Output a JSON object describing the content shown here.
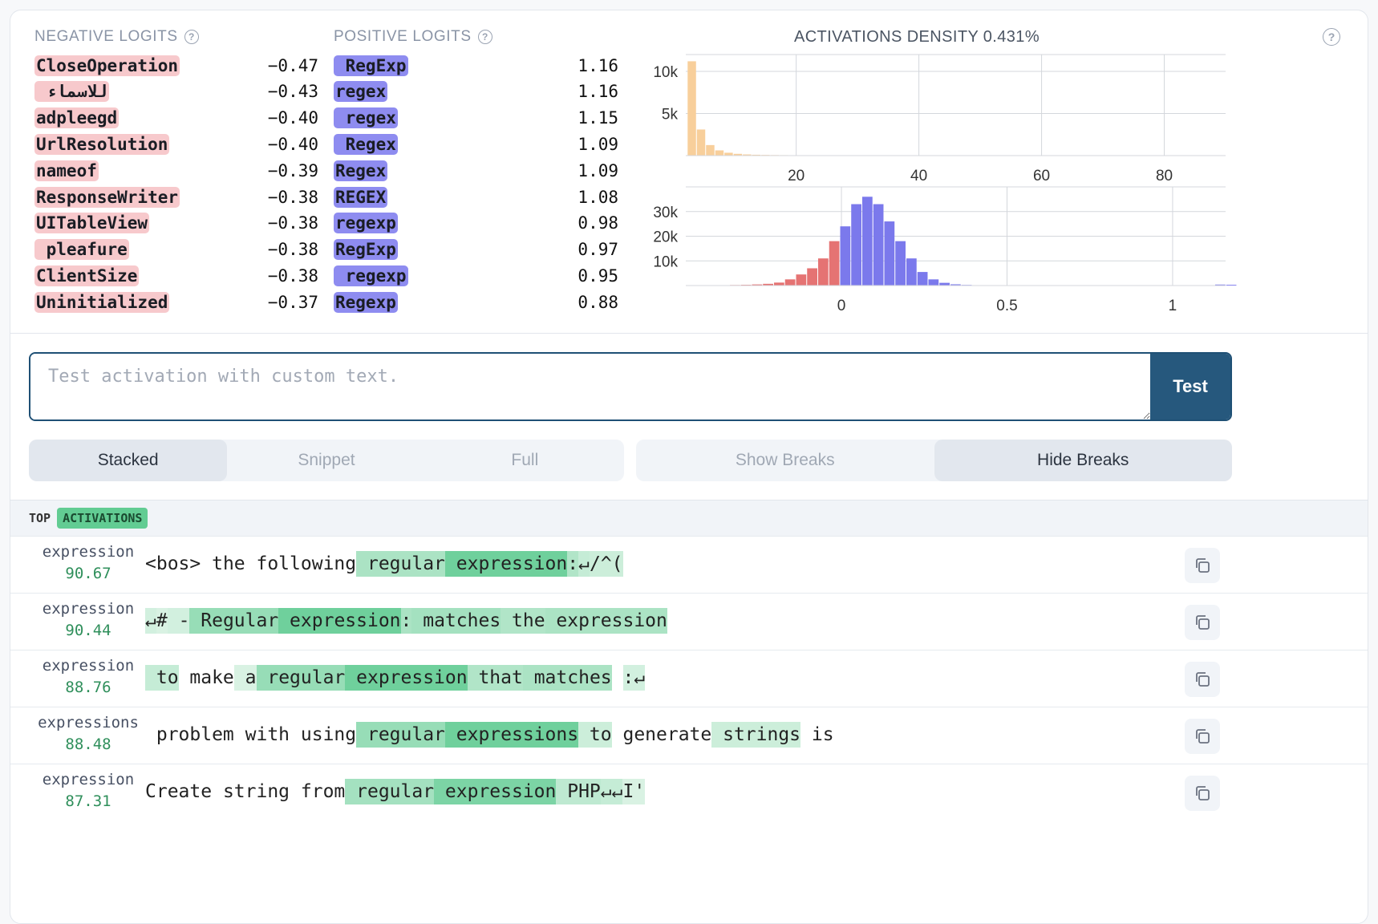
{
  "negative_logits": {
    "title": "NEGATIVE LOGITS",
    "items": [
      {
        "token": "CloseOperation",
        "value": "−0.47"
      },
      {
        "token": " ﻟﻼﺳﻤﺎء",
        "value": "−0.43"
      },
      {
        "token": "adpleegd",
        "value": "−0.40"
      },
      {
        "token": "UrlResolution",
        "value": "−0.40"
      },
      {
        "token": "nameof",
        "value": "−0.39"
      },
      {
        "token": "ResponseWriter",
        "value": "−0.38"
      },
      {
        "token": "UITableView",
        "value": "−0.38"
      },
      {
        "token": " pleafure",
        "value": "−0.38"
      },
      {
        "token": "ClientSize",
        "value": "−0.38"
      },
      {
        "token": "Uninitialized",
        "value": "−0.37"
      }
    ]
  },
  "positive_logits": {
    "title": "POSITIVE LOGITS",
    "items": [
      {
        "token": " RegExp",
        "value": "1.16"
      },
      {
        "token": "regex",
        "value": "1.16"
      },
      {
        "token": " regex",
        "value": "1.15"
      },
      {
        "token": " Regex",
        "value": "1.09"
      },
      {
        "token": "Regex",
        "value": "1.09"
      },
      {
        "token": "REGEX",
        "value": "1.08"
      },
      {
        "token": "regexp",
        "value": "0.98"
      },
      {
        "token": "RegExp",
        "value": "0.97"
      },
      {
        "token": " regexp",
        "value": "0.95"
      },
      {
        "token": "Regexp",
        "value": "0.88"
      }
    ]
  },
  "density": {
    "title": "ACTIVATIONS DENSITY 0.431%"
  },
  "chart_data": [
    {
      "type": "bar",
      "x_ticks": [
        "20",
        "40",
        "60",
        "80"
      ],
      "y_ticks": [
        "5k",
        "10k"
      ],
      "x_range": [
        2,
        90
      ],
      "ylim": [
        0,
        12000
      ],
      "color": "#f8cf9b",
      "bin_width": 1.5,
      "bins_start": 2.3,
      "values": [
        11200,
        3100,
        1250,
        620,
        340,
        210,
        140,
        100,
        80,
        65,
        55,
        48,
        42,
        38,
        35,
        32,
        30,
        28,
        26,
        25,
        24,
        23,
        22,
        21,
        20,
        20,
        19,
        19,
        18,
        18,
        17,
        17,
        16,
        16,
        15,
        15,
        15,
        14,
        14,
        14,
        13,
        13,
        13,
        12,
        12,
        12,
        11,
        11,
        11,
        10,
        10,
        10,
        9,
        9,
        9,
        8,
        8,
        8
      ]
    },
    {
      "type": "bar",
      "x_ticks": [
        "0",
        "0.5",
        "1"
      ],
      "y_ticks": [
        "10k",
        "20k",
        "30k"
      ],
      "x_range": [
        -0.47,
        1.16
      ],
      "ylim": [
        0,
        40000
      ],
      "neg_color": "#e57373",
      "pos_color": "#7b79ec",
      "bin_width": 0.0333,
      "bins_start": -0.47,
      "values": [
        80,
        100,
        130,
        160,
        220,
        300,
        450,
        700,
        1200,
        2500,
        4500,
        7000,
        11000,
        18000,
        24000,
        33000,
        36000,
        33000,
        26000,
        18000,
        11000,
        5500,
        2500,
        1100,
        500,
        260,
        150,
        100,
        70,
        55,
        45,
        40,
        35,
        30,
        25,
        20,
        15,
        10,
        8,
        6,
        5,
        4,
        3,
        2,
        2,
        1,
        1,
        1,
        400,
        300
      ]
    }
  ],
  "test": {
    "placeholder": "Test activation with custom text.",
    "button": "Test"
  },
  "view_modes": [
    "Stacked",
    "Snippet",
    "Full"
  ],
  "break_modes": [
    "Show Breaks",
    "Hide Breaks"
  ],
  "top_activations": {
    "label_top": "TOP",
    "label_act": "ACTIVATIONS",
    "rows": [
      {
        "token": "expression",
        "value": "90.67",
        "tokens": [
          {
            "t": "<bos>",
            "a": 0
          },
          {
            "t": " the",
            "a": 0
          },
          {
            "t": " following",
            "a": 0
          },
          {
            "t": " regular",
            "a": 0.45
          },
          {
            "t": " expression",
            "a": 0.9
          },
          {
            "t": ":",
            "a": 0.4
          },
          {
            "t": "↵",
            "a": 0.25
          },
          {
            "t": "/",
            "a": 0.2
          },
          {
            "t": "^(",
            "a": 0.2
          }
        ]
      },
      {
        "token": "expression",
        "value": "90.44",
        "tokens": [
          {
            "t": "↵",
            "a": 0.15
          },
          {
            "t": "#",
            "a": 0.1
          },
          {
            "t": " -",
            "a": 0.15
          },
          {
            "t": " Regular",
            "a": 0.6
          },
          {
            "t": " expression",
            "a": 0.9
          },
          {
            "t": ":",
            "a": 0.45
          },
          {
            "t": " matches",
            "a": 0.5
          },
          {
            "t": " the",
            "a": 0.4
          },
          {
            "t": " expression",
            "a": 0.45
          }
        ]
      },
      {
        "token": "expression",
        "value": "88.76",
        "tokens": [
          {
            "t": " to",
            "a": 0.25
          },
          {
            "t": " make",
            "a": 0
          },
          {
            "t": " a",
            "a": 0.1
          },
          {
            "t": " regular",
            "a": 0.6
          },
          {
            "t": " expression",
            "a": 0.9
          },
          {
            "t": " that",
            "a": 0.4
          },
          {
            "t": " matches",
            "a": 0.45
          },
          {
            "t": " ",
            "a": 0
          },
          {
            "t": ":",
            "a": 0.15
          },
          {
            "t": "↵",
            "a": 0.15
          }
        ]
      },
      {
        "token": "expressions",
        "value": "88.48",
        "tokens": [
          {
            "t": " problem",
            "a": 0
          },
          {
            "t": " with",
            "a": 0
          },
          {
            "t": " using",
            "a": 0
          },
          {
            "t": " regular",
            "a": 0.6
          },
          {
            "t": " expressions",
            "a": 0.9
          },
          {
            "t": " to",
            "a": 0.2
          },
          {
            "t": " generate",
            "a": 0
          },
          {
            "t": " strings",
            "a": 0.2
          },
          {
            "t": " is",
            "a": 0
          }
        ]
      },
      {
        "token": "expression",
        "value": "87.31",
        "tokens": [
          {
            "t": "Create",
            "a": 0
          },
          {
            "t": " string",
            "a": 0
          },
          {
            "t": " from",
            "a": 0
          },
          {
            "t": " regular",
            "a": 0.5
          },
          {
            "t": " expression",
            "a": 0.8
          },
          {
            "t": " PHP",
            "a": 0.3
          },
          {
            "t": "↵↵",
            "a": 0.25
          },
          {
            "t": "I'",
            "a": 0.1
          }
        ]
      }
    ]
  }
}
